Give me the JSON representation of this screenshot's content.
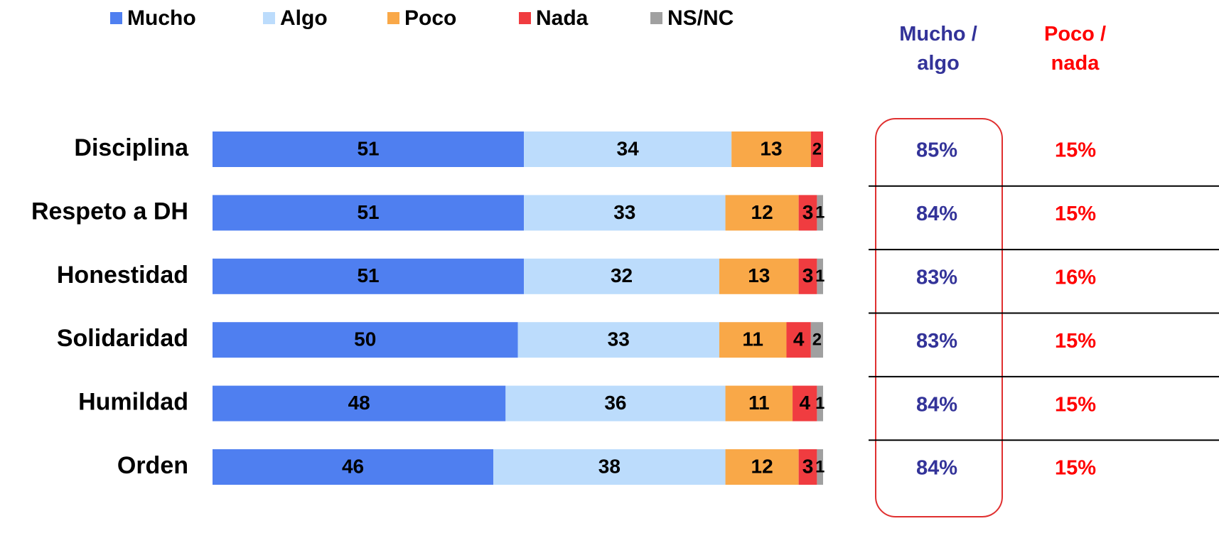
{
  "chart_data": {
    "type": "stacked_bar_horizontal",
    "categories": [
      "Disciplina",
      "Respeto a DH",
      "Honestidad",
      "Solidaridad",
      "Humildad",
      "Orden"
    ],
    "xlim": [
      0,
      100
    ],
    "legend": "top",
    "series": [
      {
        "name": "Mucho",
        "color": "#4f7ff0",
        "values": [
          51,
          51,
          51,
          50,
          48,
          46
        ]
      },
      {
        "name": "Algo",
        "color": "#bcdcfc",
        "values": [
          34,
          33,
          32,
          33,
          36,
          38
        ]
      },
      {
        "name": "Poco",
        "color": "#f9a848",
        "values": [
          13,
          12,
          13,
          11,
          11,
          12
        ]
      },
      {
        "name": "Nada",
        "color": "#f03c40",
        "values": [
          2,
          3,
          3,
          4,
          4,
          3
        ]
      },
      {
        "name": "NS/NC",
        "color": "#a0a0a0",
        "values": [
          null,
          1,
          1,
          2,
          1,
          1
        ]
      }
    ],
    "summary": [
      {
        "name": "Mucho / algo",
        "color": "#333399",
        "values": [
          85,
          84,
          83,
          83,
          84,
          84
        ],
        "value_labels": [
          "85%",
          "84%",
          "83%",
          "83%",
          "84%",
          "84%"
        ]
      },
      {
        "name": "Poco / nada",
        "color": "#ff0000",
        "values": [
          15,
          15,
          16,
          15,
          15,
          15
        ],
        "value_labels": [
          "15%",
          "15%",
          "16%",
          "15%",
          "15%",
          "15%"
        ]
      }
    ]
  }
}
